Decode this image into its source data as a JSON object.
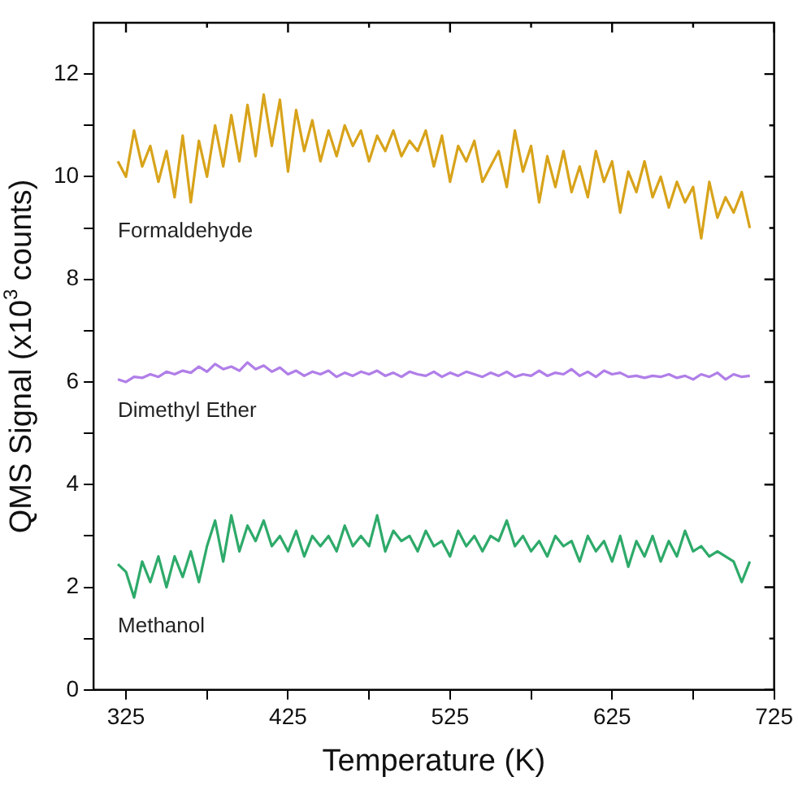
{
  "chart_data": {
    "type": "line",
    "xlabel": "Temperature (K)",
    "ylabel": "QMS Signal (x10$^{3}$ counts)",
    "xlim": [
      305,
      725
    ],
    "xticks": [
      325,
      {
        "value": 375,
        "label": null
      },
      425,
      {
        "value": 475,
        "label": null
      },
      525,
      {
        "value": 575,
        "label": null
      },
      625,
      {
        "value": 675,
        "label": null
      },
      725
    ],
    "ylim": [
      0,
      13
    ],
    "yticks": [
      0,
      {
        "value": 1,
        "label": null
      },
      2,
      {
        "value": 3,
        "label": null
      },
      4,
      {
        "value": 5,
        "label": null
      },
      6,
      {
        "value": 7,
        "label": null
      },
      8,
      {
        "value": 9,
        "label": null
      },
      10,
      {
        "value": 11,
        "label": null
      },
      12
    ],
    "grid": false,
    "legend": false,
    "marker": "none",
    "line_style": "solid",
    "x": [
      320,
      325,
      330,
      335,
      340,
      345,
      350,
      355,
      360,
      365,
      370,
      375,
      380,
      385,
      390,
      395,
      400,
      405,
      410,
      415,
      420,
      425,
      430,
      435,
      440,
      445,
      450,
      455,
      460,
      465,
      470,
      475,
      480,
      485,
      490,
      495,
      500,
      505,
      510,
      515,
      520,
      525,
      530,
      535,
      540,
      545,
      550,
      555,
      560,
      565,
      570,
      575,
      580,
      585,
      590,
      595,
      600,
      605,
      610,
      615,
      620,
      625,
      630,
      635,
      640,
      645,
      650,
      655,
      660,
      665,
      670,
      675,
      680,
      685,
      690,
      695,
      700,
      705,
      710
    ],
    "series": [
      {
        "name": "Formaldehyde",
        "color": "#d8a31a",
        "values": [
          10.3,
          10.0,
          10.9,
          10.2,
          10.6,
          9.9,
          10.5,
          9.6,
          10.8,
          9.5,
          10.7,
          10.0,
          11.0,
          10.2,
          11.2,
          10.3,
          11.4,
          10.4,
          11.6,
          10.6,
          11.5,
          10.1,
          11.3,
          10.5,
          11.1,
          10.3,
          10.9,
          10.4,
          11.0,
          10.6,
          10.9,
          10.3,
          10.8,
          10.5,
          10.9,
          10.4,
          10.7,
          10.5,
          10.9,
          10.2,
          10.8,
          9.9,
          10.6,
          10.3,
          10.7,
          9.9,
          10.2,
          10.5,
          9.8,
          10.9,
          10.1,
          10.6,
          9.5,
          10.4,
          9.8,
          10.5,
          9.7,
          10.2,
          9.6,
          10.5,
          9.9,
          10.3,
          9.3,
          10.1,
          9.7,
          10.3,
          9.6,
          10.0,
          9.4,
          9.9,
          9.5,
          9.8,
          8.8,
          9.9,
          9.2,
          9.6,
          9.3,
          9.7,
          9.0
        ]
      },
      {
        "name": "Dimethyl Ether",
        "color": "#b07ee8",
        "values": [
          6.05,
          6.0,
          6.1,
          6.08,
          6.15,
          6.1,
          6.2,
          6.15,
          6.22,
          6.18,
          6.3,
          6.2,
          6.35,
          6.25,
          6.3,
          6.22,
          6.38,
          6.25,
          6.32,
          6.2,
          6.28,
          6.15,
          6.22,
          6.12,
          6.2,
          6.15,
          6.22,
          6.1,
          6.18,
          6.12,
          6.2,
          6.15,
          6.22,
          6.12,
          6.18,
          6.1,
          6.2,
          6.15,
          6.12,
          6.2,
          6.1,
          6.18,
          6.12,
          6.2,
          6.15,
          6.1,
          6.18,
          6.12,
          6.2,
          6.1,
          6.15,
          6.12,
          6.22,
          6.12,
          6.18,
          6.15,
          6.25,
          6.12,
          6.2,
          6.1,
          6.22,
          6.15,
          6.18,
          6.1,
          6.12,
          6.08,
          6.12,
          6.1,
          6.15,
          6.08,
          6.12,
          6.05,
          6.15,
          6.1,
          6.18,
          6.05,
          6.15,
          6.1,
          6.12
        ]
      },
      {
        "name": "Methanol",
        "color": "#2eaa6a",
        "values": [
          2.45,
          2.3,
          1.8,
          2.5,
          2.1,
          2.6,
          2.0,
          2.6,
          2.2,
          2.7,
          2.1,
          2.8,
          3.3,
          2.5,
          3.4,
          2.7,
          3.2,
          2.9,
          3.3,
          2.8,
          3.0,
          2.7,
          3.1,
          2.6,
          3.0,
          2.8,
          3.0,
          2.7,
          3.2,
          2.8,
          3.0,
          2.8,
          3.4,
          2.7,
          3.1,
          2.9,
          3.0,
          2.7,
          3.1,
          2.8,
          2.9,
          2.6,
          3.1,
          2.8,
          3.0,
          2.7,
          3.0,
          2.9,
          3.3,
          2.8,
          3.0,
          2.7,
          2.9,
          2.6,
          3.0,
          2.8,
          2.9,
          2.5,
          3.0,
          2.7,
          2.9,
          2.5,
          3.0,
          2.4,
          2.9,
          2.6,
          3.0,
          2.5,
          2.9,
          2.6,
          3.1,
          2.7,
          2.8,
          2.6,
          2.7,
          2.6,
          2.5,
          2.1,
          2.5
        ]
      }
    ]
  }
}
